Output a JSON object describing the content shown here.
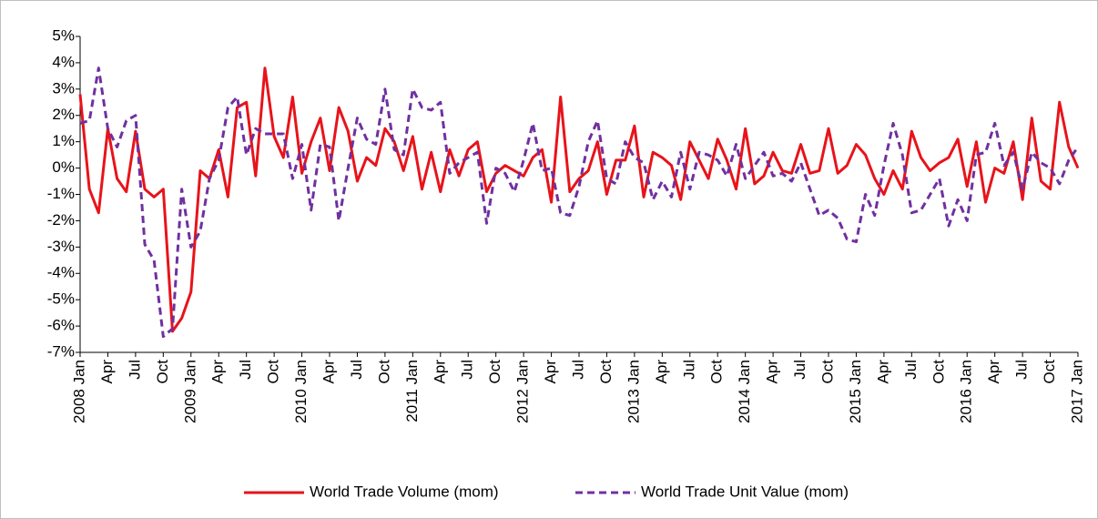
{
  "chart_data": {
    "type": "line",
    "categories": [
      "2008 Jan",
      null,
      null,
      "Apr",
      null,
      null,
      "Jul",
      null,
      null,
      "Oct",
      null,
      null,
      "2009 Jan",
      null,
      null,
      "Apr",
      null,
      null,
      "Jul",
      null,
      null,
      "Oct",
      null,
      null,
      "2010 Jan",
      null,
      null,
      "Apr",
      null,
      null,
      "Jul",
      null,
      null,
      "Oct",
      null,
      null,
      "2011 Jan",
      null,
      null,
      "Apr",
      null,
      null,
      "Jul",
      null,
      null,
      "Oct",
      null,
      null,
      "2012 Jan",
      null,
      null,
      "Apr",
      null,
      null,
      "Jul",
      null,
      null,
      "Oct",
      null,
      null,
      "2013 Jan",
      null,
      null,
      "Apr",
      null,
      null,
      "Jul",
      null,
      null,
      "Oct",
      null,
      null,
      "2014 Jan",
      null,
      null,
      "Apr",
      null,
      null,
      "Jul",
      null,
      null,
      "Oct",
      null,
      null,
      "2015 Jan",
      null,
      null,
      "Apr",
      null,
      null,
      "Jul",
      null,
      null,
      "Oct",
      null,
      null,
      "2016 Jan",
      null,
      null,
      "Apr",
      null,
      null,
      "Jul",
      null,
      null,
      "Oct",
      null,
      null,
      "2017 Jan"
    ],
    "series": [
      {
        "name": "World Trade Volume (mom)",
        "color": "#e8131a",
        "dash": false,
        "values": [
          2.8,
          -0.8,
          -1.7,
          1.5,
          -0.4,
          -0.9,
          1.4,
          -0.8,
          -1.1,
          -0.8,
          -6.2,
          -5.7,
          -4.7,
          -0.1,
          -0.4,
          0.7,
          -1.1,
          2.3,
          2.5,
          -0.3,
          3.8,
          1.2,
          0.4,
          2.7,
          -0.2,
          1.0,
          1.9,
          -0.1,
          2.3,
          1.4,
          -0.5,
          0.4,
          0.1,
          1.5,
          1.0,
          -0.1,
          1.2,
          -0.8,
          0.6,
          -0.9,
          0.7,
          -0.3,
          0.7,
          1.0,
          -0.9,
          -0.2,
          0.1,
          -0.1,
          -0.3,
          0.4,
          0.7,
          -1.3,
          2.7,
          -0.9,
          -0.4,
          -0.1,
          1.0,
          -1.0,
          0.3,
          0.3,
          1.6,
          -1.1,
          0.6,
          0.4,
          0.1,
          -1.2,
          1.0,
          0.3,
          -0.4,
          1.1,
          0.3,
          -0.8,
          1.5,
          -0.6,
          -0.3,
          0.6,
          -0.1,
          -0.2,
          0.9,
          -0.2,
          -0.1,
          1.5,
          -0.2,
          0.1,
          0.9,
          0.5,
          -0.4,
          -1.0,
          -0.1,
          -0.8,
          1.4,
          0.4,
          -0.1,
          0.2,
          0.4,
          1.1,
          -0.7,
          1.0,
          -1.3,
          0.0,
          -0.2,
          1.0,
          -1.2,
          1.9,
          -0.5,
          -0.8,
          2.5,
          0.8,
          0.0
        ]
      },
      {
        "name": "World Trade Unit Value (mom)",
        "color": "#7030a0",
        "dash": true,
        "values": [
          1.7,
          1.8,
          3.8,
          1.5,
          0.8,
          1.8,
          2.0,
          -2.9,
          -3.5,
          -6.4,
          -6.1,
          -0.8,
          -3.0,
          -2.4,
          -0.4,
          0.3,
          2.3,
          2.7,
          0.5,
          1.5,
          1.3,
          1.3,
          1.3,
          -0.4,
          0.9,
          -1.6,
          0.9,
          0.8,
          -2.0,
          0.0,
          1.9,
          1.1,
          0.9,
          3.0,
          0.7,
          0.5,
          3.0,
          2.3,
          2.2,
          2.5,
          -0.2,
          0.2,
          0.4,
          0.6,
          -2.1,
          0.0,
          -0.2,
          -0.9,
          0.3,
          1.7,
          -0.1,
          0.0,
          -1.7,
          -1.8,
          -0.7,
          1.0,
          1.8,
          -0.4,
          -0.6,
          1.0,
          0.4,
          0.2,
          -1.2,
          -0.5,
          -1.1,
          0.6,
          -0.8,
          0.6,
          0.5,
          0.3,
          -0.3,
          0.9,
          -0.4,
          0.1,
          0.6,
          -0.3,
          -0.2,
          -0.5,
          0.2,
          -0.8,
          -1.8,
          -1.6,
          -1.9,
          -2.7,
          -2.8,
          -1.0,
          -1.8,
          0.1,
          1.7,
          0.5,
          -1.7,
          -1.6,
          -1.0,
          -0.4,
          -2.2,
          -1.2,
          -2.0,
          0.5,
          0.6,
          1.7,
          0.1,
          0.6,
          -0.8,
          0.6,
          0.2,
          0.0,
          -0.6,
          0.3,
          0.8
        ]
      }
    ],
    "ylim": [
      -7,
      5
    ],
    "yticks": [
      {
        "value": -7,
        "label": "-7%"
      },
      {
        "value": -6,
        "label": "-6%"
      },
      {
        "value": -5,
        "label": "-5%"
      },
      {
        "value": -4,
        "label": "-4%"
      },
      {
        "value": -3,
        "label": "-3%"
      },
      {
        "value": -2,
        "label": "-2%"
      },
      {
        "value": -1,
        "label": "-1%"
      },
      {
        "value": 0,
        "label": "0%"
      },
      {
        "value": 1,
        "label": "1%"
      },
      {
        "value": 2,
        "label": "2%"
      },
      {
        "value": 3,
        "label": "3%"
      },
      {
        "value": 4,
        "label": "4%"
      },
      {
        "value": 5,
        "label": "5%"
      }
    ],
    "grid": false,
    "legend": "bottom"
  }
}
